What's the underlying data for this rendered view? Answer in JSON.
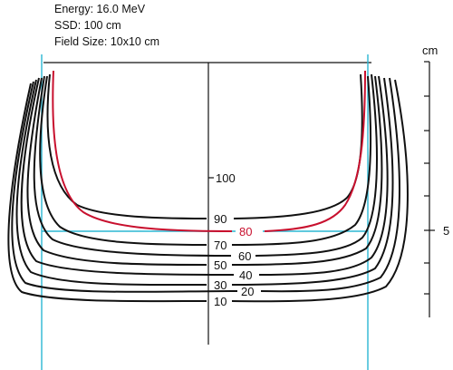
{
  "info": {
    "energy": "Energy:  16.0 MeV",
    "ssd": "SSD:  100 cm",
    "field_size": "Field Size:  10x10 cm"
  },
  "scale": {
    "unit": "cm",
    "mark_label": "5"
  },
  "isodose_labels": {
    "l100": "100",
    "l90": "90",
    "l80": "80",
    "l70": "70",
    "l60": "60",
    "l50": "50",
    "l40": "40",
    "l30": "30",
    "l20": "20",
    "l10": "10"
  },
  "colors": {
    "isodose": "#111111",
    "highlight_80": "#c8102e",
    "field_edge": "#2bb7d3"
  }
}
